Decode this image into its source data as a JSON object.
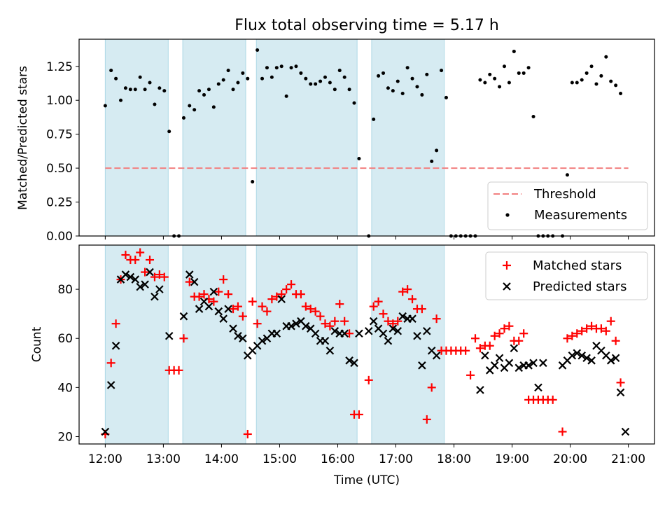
{
  "chart_data": [
    {
      "type": "scatter",
      "title": "Flux total observing time = 5.17 h",
      "xlabel": "",
      "ylabel": "Matched/Predicted stars",
      "xlim": [
        "11:33",
        "21:27"
      ],
      "ylim": [
        0,
        1.45
      ],
      "yticks": [
        "0.00",
        "0.25",
        "0.50",
        "0.75",
        "1.00",
        "1.25"
      ],
      "threshold": 0.5,
      "shaded_intervals": [
        [
          "12:00",
          "13:05"
        ],
        [
          "13:20",
          "14:25"
        ],
        [
          "14:36",
          "16:20"
        ],
        [
          "16:35",
          "17:50"
        ]
      ],
      "legend_position": "lower right",
      "legend": {
        "threshold": "Threshold",
        "measurements": "Measurements"
      },
      "series": [
        {
          "name": "Measurements",
          "x": [
            "12:00",
            "12:06",
            "12:11",
            "12:16",
            "12:21",
            "12:26",
            "12:31",
            "12:36",
            "12:41",
            "12:46",
            "12:51",
            "12:56",
            "13:01",
            "13:06",
            "13:11",
            "13:16",
            "13:21",
            "13:27",
            "13:32",
            "13:37",
            "13:42",
            "13:47",
            "13:52",
            "13:57",
            "14:02",
            "14:07",
            "14:12",
            "14:17",
            "14:22",
            "14:27",
            "14:32",
            "14:37",
            "14:42",
            "14:47",
            "14:52",
            "14:57",
            "15:02",
            "15:07",
            "15:12",
            "15:17",
            "15:22",
            "15:27",
            "15:32",
            "15:37",
            "15:42",
            "15:47",
            "15:52",
            "15:57",
            "16:02",
            "16:07",
            "16:12",
            "16:17",
            "16:22",
            "16:32",
            "16:37",
            "16:42",
            "16:47",
            "16:52",
            "16:57",
            "17:02",
            "17:07",
            "17:12",
            "17:17",
            "17:22",
            "17:27",
            "17:32",
            "17:37",
            "17:42",
            "17:47",
            "17:52",
            "17:57",
            "18:02",
            "18:07",
            "18:12",
            "18:17",
            "18:22",
            "18:27",
            "18:32",
            "18:37",
            "18:42",
            "18:47",
            "18:52",
            "18:57",
            "19:02",
            "19:07",
            "19:12",
            "19:17",
            "19:22",
            "19:27",
            "19:32",
            "19:37",
            "19:42",
            "19:52",
            "19:57",
            "20:02",
            "20:07",
            "20:12",
            "20:17",
            "20:22",
            "20:27",
            "20:32",
            "20:37",
            "20:42",
            "20:47",
            "20:52"
          ],
          "y": [
            0.96,
            1.22,
            1.16,
            1.0,
            1.09,
            1.08,
            1.08,
            1.17,
            1.08,
            1.13,
            0.97,
            1.09,
            1.07,
            0.77,
            0.0,
            0.0,
            0.87,
            0.96,
            0.93,
            1.07,
            1.04,
            1.08,
            0.95,
            1.12,
            1.15,
            1.22,
            1.08,
            1.13,
            1.2,
            1.16,
            0.4,
            1.37,
            1.16,
            1.24,
            1.17,
            1.24,
            1.25,
            1.03,
            1.24,
            1.25,
            1.2,
            1.16,
            1.12,
            1.12,
            1.14,
            1.17,
            1.13,
            1.08,
            1.22,
            1.17,
            1.08,
            0.98,
            0.57,
            0.0,
            0.86,
            1.18,
            1.2,
            1.09,
            1.07,
            1.14,
            1.05,
            1.24,
            1.16,
            1.1,
            1.04,
            1.19,
            0.55,
            0.63,
            1.22,
            1.02,
            0.0,
            0.0,
            0.0,
            0.0,
            0.0,
            0.0,
            1.15,
            1.13,
            1.19,
            1.16,
            1.1,
            1.25,
            1.13,
            1.36,
            1.2,
            1.2,
            1.24,
            0.88,
            0.0,
            0.0,
            0.0,
            0.0,
            0.0,
            0.45,
            1.13,
            1.13,
            1.15,
            1.2,
            1.25,
            1.12,
            1.18,
            1.32,
            1.14,
            1.11,
            1.05
          ]
        }
      ]
    },
    {
      "type": "scatter",
      "title": "",
      "xlabel": "Time (UTC)",
      "ylabel": "Count",
      "xlim": [
        "11:33",
        "21:27"
      ],
      "ylim": [
        17,
        98
      ],
      "xticks": [
        "12:00",
        "13:00",
        "14:00",
        "15:00",
        "16:00",
        "17:00",
        "18:00",
        "19:00",
        "20:00",
        "21:00"
      ],
      "yticks": [
        "20",
        "40",
        "60",
        "80"
      ],
      "shaded_intervals": [
        [
          "12:00",
          "13:05"
        ],
        [
          "13:20",
          "14:25"
        ],
        [
          "14:36",
          "16:20"
        ],
        [
          "16:35",
          "17:50"
        ]
      ],
      "legend_position": "upper right",
      "series": [
        {
          "name": "Matched stars",
          "x": [
            "12:00",
            "12:06",
            "12:11",
            "12:16",
            "12:21",
            "12:26",
            "12:31",
            "12:36",
            "12:41",
            "12:46",
            "12:51",
            "12:56",
            "13:01",
            "13:06",
            "13:11",
            "13:16",
            "13:21",
            "13:27",
            "13:32",
            "13:37",
            "13:42",
            "13:47",
            "13:52",
            "13:57",
            "14:02",
            "14:07",
            "14:12",
            "14:17",
            "14:22",
            "14:27",
            "14:32",
            "14:37",
            "14:42",
            "14:47",
            "14:52",
            "14:57",
            "15:02",
            "15:07",
            "15:12",
            "15:17",
            "15:22",
            "15:27",
            "15:32",
            "15:37",
            "15:42",
            "15:47",
            "15:52",
            "15:57",
            "16:02",
            "16:07",
            "16:12",
            "16:17",
            "16:22",
            "16:32",
            "16:37",
            "16:42",
            "16:47",
            "16:52",
            "16:57",
            "17:02",
            "17:07",
            "17:12",
            "17:17",
            "17:22",
            "17:27",
            "17:32",
            "17:37",
            "17:42",
            "17:47",
            "17:52",
            "17:57",
            "18:02",
            "18:07",
            "18:12",
            "18:17",
            "18:22",
            "18:27",
            "18:32",
            "18:37",
            "18:42",
            "18:47",
            "18:52",
            "18:57",
            "19:02",
            "19:07",
            "19:12",
            "19:17",
            "19:22",
            "19:27",
            "19:32",
            "19:37",
            "19:42",
            "19:52",
            "19:57",
            "20:02",
            "20:07",
            "20:12",
            "20:17",
            "20:22",
            "20:27",
            "20:32",
            "20:37",
            "20:42",
            "20:47",
            "20:52"
          ],
          "y": [
            21,
            50,
            66,
            84,
            94,
            92,
            92,
            95,
            87,
            92,
            85,
            86,
            85,
            47,
            47,
            47,
            60,
            83,
            77,
            77,
            78,
            76,
            75,
            79,
            84,
            78,
            72,
            73,
            69,
            21,
            75,
            66,
            73,
            71,
            76,
            77,
            78,
            80,
            82,
            78,
            78,
            73,
            72,
            71,
            69,
            66,
            65,
            67,
            74,
            67,
            62,
            29,
            29,
            43,
            73,
            75,
            70,
            67,
            66,
            67,
            79,
            80,
            76,
            72,
            72,
            27,
            40,
            68,
            55,
            55,
            55,
            55,
            55,
            55,
            45,
            60,
            56,
            57,
            57,
            61,
            62,
            64,
            65,
            59,
            59,
            62,
            35,
            35,
            35,
            35,
            35,
            35,
            22,
            60,
            61,
            62,
            63,
            64,
            65,
            64,
            64,
            63,
            67,
            59,
            42
          ]
        },
        {
          "name": "Predicted stars",
          "x": [
            "12:00",
            "12:06",
            "12:11",
            "12:16",
            "12:21",
            "12:26",
            "12:31",
            "12:36",
            "12:41",
            "12:46",
            "12:51",
            "12:56",
            "13:06",
            "13:21",
            "13:27",
            "13:32",
            "13:37",
            "13:42",
            "13:47",
            "13:52",
            "13:57",
            "14:02",
            "14:07",
            "14:12",
            "14:17",
            "14:22",
            "14:27",
            "14:32",
            "14:37",
            "14:42",
            "14:47",
            "14:52",
            "14:57",
            "15:02",
            "15:07",
            "15:12",
            "15:17",
            "15:22",
            "15:27",
            "15:32",
            "15:37",
            "15:42",
            "15:47",
            "15:52",
            "15:57",
            "16:02",
            "16:07",
            "16:12",
            "16:17",
            "16:22",
            "16:32",
            "16:37",
            "16:42",
            "16:47",
            "16:52",
            "16:57",
            "17:02",
            "17:07",
            "17:12",
            "17:17",
            "17:22",
            "17:27",
            "17:32",
            "17:37",
            "17:42",
            "18:27",
            "18:32",
            "18:37",
            "18:42",
            "18:47",
            "18:52",
            "18:57",
            "19:02",
            "19:07",
            "19:12",
            "19:17",
            "19:22",
            "19:27",
            "19:32",
            "19:52",
            "19:57",
            "20:02",
            "20:07",
            "20:12",
            "20:17",
            "20:22",
            "20:27",
            "20:32",
            "20:37",
            "20:42",
            "20:47",
            "20:52",
            "20:57"
          ],
          "y": [
            22,
            41,
            57,
            84,
            86,
            85,
            84,
            81,
            82,
            87,
            77,
            80,
            61,
            69,
            86,
            83,
            72,
            75,
            73,
            79,
            71,
            68,
            72,
            64,
            61,
            60,
            53,
            55,
            57,
            59,
            60,
            62,
            62,
            76,
            65,
            65,
            66,
            67,
            65,
            64,
            62,
            59,
            59,
            55,
            63,
            62,
            62,
            51,
            50,
            62,
            63,
            67,
            64,
            62,
            59,
            64,
            63,
            69,
            68,
            68,
            61,
            49,
            63,
            55,
            53,
            39,
            53,
            47,
            49,
            52,
            48,
            50,
            56,
            48,
            49,
            49,
            50,
            40,
            50,
            49,
            51,
            53,
            54,
            53,
            52,
            51,
            57,
            55,
            53,
            51,
            52,
            38,
            22
          ]
        }
      ]
    }
  ]
}
